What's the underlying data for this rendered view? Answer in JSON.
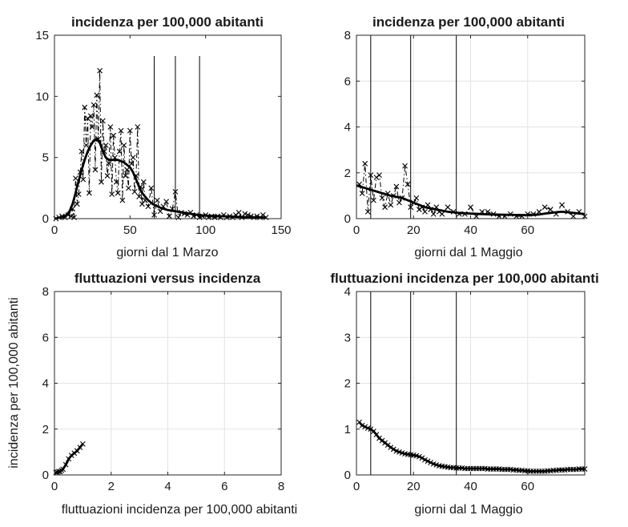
{
  "chart_data": [
    {
      "type": "line",
      "title": "incidenza per 100,000 abitanti",
      "xlabel": "giorni dal 1 Marzo",
      "ylabel": "",
      "xlim": [
        0,
        150
      ],
      "ylim": [
        0,
        15
      ],
      "xticks": [
        0,
        50,
        100,
        150
      ],
      "yticks": [
        0,
        5,
        10,
        15
      ],
      "grid": false,
      "vertical_lines": [
        66,
        80,
        96
      ],
      "vertical_lines_top": 13.3,
      "series": [
        {
          "style": "dashdot-markers",
          "x": [
            1,
            3,
            5,
            7,
            9,
            11,
            12,
            13,
            14,
            15,
            16,
            17,
            18,
            19,
            20,
            21,
            22,
            23,
            24,
            25,
            26,
            27,
            28,
            29,
            30,
            31,
            32,
            33,
            34,
            35,
            36,
            37,
            38,
            39,
            40,
            41,
            42,
            43,
            44,
            45,
            46,
            47,
            48,
            49,
            50,
            51,
            52,
            53,
            54,
            55,
            56,
            57,
            58,
            59,
            60,
            62,
            64,
            66,
            68,
            70,
            72,
            74,
            76,
            78,
            80,
            82,
            84,
            86,
            88,
            90,
            92,
            94,
            96,
            98,
            100,
            102,
            104,
            106,
            108,
            110,
            112,
            114,
            116,
            118,
            120,
            122,
            124,
            126,
            128,
            130,
            132,
            134,
            136,
            138,
            140
          ],
          "y": [
            0.0,
            0.1,
            0.2,
            0.1,
            0.3,
            0.2,
            0.8,
            0.1,
            3.3,
            1.2,
            2.0,
            3.8,
            5.5,
            3.2,
            9.1,
            6.0,
            8.2,
            2.1,
            8.4,
            7.5,
            9.3,
            4.0,
            10.1,
            6.5,
            12.1,
            3.0,
            8.0,
            5.5,
            6.0,
            3.5,
            4.5,
            7.5,
            2.0,
            6.8,
            5.0,
            3.0,
            2.1,
            5.5,
            7.2,
            1.5,
            6.0,
            3.5,
            4.0,
            2.5,
            7.2,
            4.5,
            5.0,
            2.2,
            3.5,
            7.5,
            1.8,
            2.6,
            1.2,
            3.0,
            1.5,
            1.0,
            2.5,
            0.3,
            1.5,
            0.6,
            1.0,
            1.4,
            0.2,
            0.8,
            2.2,
            0.1,
            0.5,
            0.4,
            0.3,
            0.5,
            0.2,
            0.3,
            0.1,
            0.2,
            0.3,
            0.1,
            0.2,
            0.1,
            0.2,
            0.1,
            0.3,
            0.1,
            0.2,
            0.1,
            0.3,
            0.5,
            0.1,
            0.4,
            0.3,
            0.2,
            0.1,
            0.2,
            0.1,
            0.3,
            0.1
          ]
        },
        {
          "style": "smooth",
          "x": [
            0,
            5,
            8,
            10,
            12,
            14,
            16,
            18,
            20,
            22,
            24,
            26,
            28,
            30,
            32,
            34,
            36,
            38,
            40,
            42,
            44,
            46,
            48,
            50,
            52,
            54,
            56,
            58,
            60,
            62,
            65,
            70,
            75,
            80,
            85,
            90,
            95,
            100,
            110,
            120,
            130,
            140
          ],
          "y": [
            0.0,
            0.1,
            0.3,
            0.6,
            1.2,
            2.1,
            3.1,
            4.0,
            4.8,
            5.5,
            6.0,
            6.4,
            6.5,
            6.2,
            5.5,
            5.0,
            4.8,
            4.8,
            4.8,
            4.8,
            4.7,
            4.6,
            4.4,
            4.2,
            3.8,
            3.2,
            2.6,
            2.1,
            1.8,
            1.5,
            1.2,
            0.9,
            0.7,
            0.6,
            0.5,
            0.4,
            0.3,
            0.25,
            0.2,
            0.15,
            0.1,
            0.1
          ]
        }
      ]
    },
    {
      "type": "line",
      "title": "incidenza per 100,000 abitanti",
      "xlabel": "giorni dal 1 Maggio",
      "ylabel": "",
      "xlim": [
        0,
        80
      ],
      "ylim": [
        0,
        8
      ],
      "xticks": [
        0,
        20,
        40,
        60
      ],
      "yticks": [
        0,
        2,
        4,
        6,
        8
      ],
      "grid": true,
      "vertical_lines": [
        5,
        19,
        35
      ],
      "series": [
        {
          "style": "dashdot-markers",
          "x": [
            1,
            2,
            3,
            4,
            5,
            6,
            7,
            8,
            9,
            10,
            11,
            12,
            13,
            14,
            15,
            16,
            17,
            18,
            19,
            20,
            21,
            22,
            23,
            24,
            25,
            26,
            27,
            28,
            29,
            30,
            32,
            34,
            36,
            38,
            40,
            42,
            44,
            46,
            48,
            50,
            52,
            54,
            56,
            58,
            60,
            62,
            64,
            66,
            68,
            70,
            72,
            74,
            76,
            78,
            80
          ],
          "y": [
            1.5,
            1.1,
            2.4,
            0.3,
            1.9,
            0.8,
            1.8,
            1.9,
            0.9,
            0.5,
            1.1,
            0.6,
            1.0,
            1.4,
            0.7,
            0.9,
            2.3,
            1.5,
            0.5,
            0.7,
            0.9,
            0.4,
            0.5,
            0.3,
            0.6,
            0.4,
            0.2,
            0.5,
            0.3,
            0.2,
            0.5,
            0.3,
            0.2,
            0.2,
            0.5,
            0.1,
            0.3,
            0.3,
            0.2,
            0.1,
            0.1,
            0.2,
            0.1,
            0.1,
            0.2,
            0.2,
            0.3,
            0.5,
            0.4,
            0.2,
            0.6,
            0.3,
            0.1,
            0.3,
            0.1
          ]
        },
        {
          "style": "smooth",
          "x": [
            0,
            4,
            8,
            12,
            16,
            20,
            24,
            28,
            32,
            36,
            40,
            44,
            48,
            52,
            56,
            60,
            62,
            64,
            66,
            68,
            70,
            72,
            74,
            76,
            80
          ],
          "y": [
            1.45,
            1.3,
            1.15,
            1.0,
            0.9,
            0.7,
            0.5,
            0.4,
            0.3,
            0.25,
            0.22,
            0.2,
            0.18,
            0.17,
            0.16,
            0.15,
            0.16,
            0.18,
            0.22,
            0.25,
            0.28,
            0.3,
            0.28,
            0.25,
            0.2
          ]
        }
      ]
    },
    {
      "type": "line",
      "title": "fluttuazioni versus incidenza",
      "xlabel": "fluttuazioni incidenza per 100,000 abitanti",
      "ylabel": "incidenza per 100,000 abitanti",
      "xlim": [
        0,
        8
      ],
      "ylim": [
        0,
        8
      ],
      "xticks": [
        0,
        2,
        4,
        6,
        8
      ],
      "yticks": [
        0,
        2,
        4,
        6,
        8
      ],
      "grid": true,
      "series": [
        {
          "style": "line-markers",
          "x": [
            0.05,
            0.1,
            0.15,
            0.2,
            0.25,
            0.3,
            0.4,
            0.5,
            0.6,
            0.7,
            0.8,
            0.9,
            1.0
          ],
          "y": [
            0.1,
            0.12,
            0.15,
            0.15,
            0.2,
            0.25,
            0.45,
            0.7,
            0.85,
            0.95,
            1.05,
            1.2,
            1.35
          ]
        }
      ]
    },
    {
      "type": "line",
      "title": "fluttuazioni incidenza per 100,000 abitanti",
      "xlabel": "giorni dal 1 Maggio",
      "ylabel": "",
      "xlim": [
        0,
        80
      ],
      "ylim": [
        0,
        4
      ],
      "xticks": [
        0,
        20,
        40,
        60
      ],
      "yticks": [
        0,
        1,
        2,
        3,
        4
      ],
      "grid": true,
      "vertical_lines": [
        5,
        19,
        35
      ],
      "series": [
        {
          "style": "line-markers",
          "x": [
            1,
            2,
            3,
            4,
            5,
            6,
            7,
            8,
            9,
            10,
            11,
            12,
            13,
            14,
            15,
            16,
            17,
            18,
            19,
            20,
            21,
            22,
            23,
            24,
            25,
            26,
            27,
            28,
            29,
            30,
            31,
            32,
            33,
            34,
            35,
            36,
            37,
            38,
            39,
            40,
            41,
            42,
            43,
            44,
            45,
            46,
            47,
            48,
            49,
            50,
            51,
            52,
            53,
            54,
            55,
            56,
            57,
            58,
            59,
            60,
            61,
            62,
            63,
            64,
            65,
            66,
            67,
            68,
            69,
            70,
            71,
            72,
            73,
            74,
            75,
            76,
            77,
            78,
            79,
            80
          ],
          "y": [
            1.15,
            1.08,
            1.05,
            1.02,
            1.0,
            0.95,
            0.88,
            0.8,
            0.75,
            0.7,
            0.65,
            0.6,
            0.56,
            0.52,
            0.5,
            0.48,
            0.46,
            0.45,
            0.44,
            0.43,
            0.42,
            0.4,
            0.37,
            0.33,
            0.3,
            0.27,
            0.24,
            0.22,
            0.2,
            0.19,
            0.18,
            0.17,
            0.16,
            0.16,
            0.15,
            0.15,
            0.15,
            0.14,
            0.14,
            0.14,
            0.14,
            0.14,
            0.14,
            0.14,
            0.14,
            0.13,
            0.13,
            0.13,
            0.13,
            0.13,
            0.12,
            0.12,
            0.12,
            0.12,
            0.11,
            0.11,
            0.1,
            0.1,
            0.09,
            0.09,
            0.08,
            0.08,
            0.08,
            0.08,
            0.08,
            0.08,
            0.09,
            0.09,
            0.1,
            0.1,
            0.11,
            0.11,
            0.11,
            0.12,
            0.12,
            0.12,
            0.12,
            0.13,
            0.13,
            0.13
          ]
        }
      ]
    }
  ]
}
